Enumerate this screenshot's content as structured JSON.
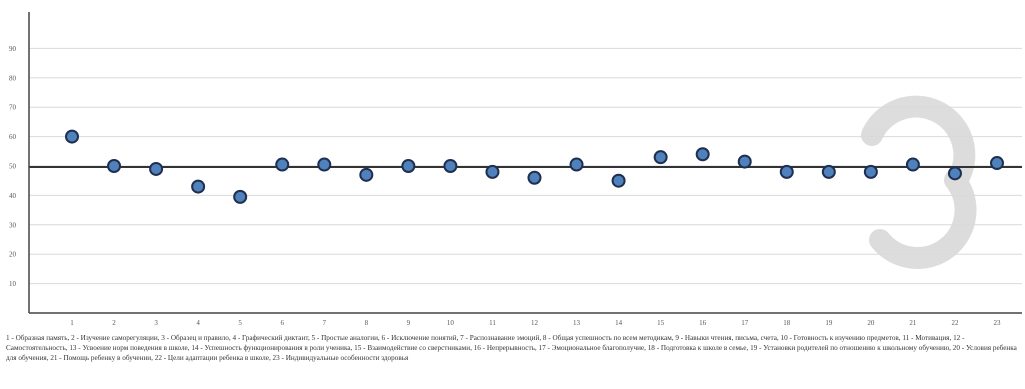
{
  "chart_data": {
    "type": "scatter",
    "x": [
      1,
      2,
      3,
      4,
      5,
      6,
      7,
      8,
      9,
      10,
      11,
      12,
      13,
      14,
      15,
      16,
      17,
      18,
      19,
      20,
      21,
      22,
      23
    ],
    "values": [
      60,
      50,
      49,
      43,
      39.5,
      50.5,
      50.5,
      47,
      50,
      50,
      48,
      46,
      50.5,
      45,
      53,
      54,
      51.5,
      48,
      48,
      48,
      50.5,
      47.5,
      51
    ],
    "yticks": [
      "10",
      "20",
      "30",
      "40",
      "50",
      "60",
      "70",
      "80",
      "90"
    ],
    "xticks": [
      "1",
      "2",
      "3",
      "4",
      "5",
      "6",
      "7",
      "8",
      "9",
      "10",
      "11",
      "12",
      "13",
      "14",
      "15",
      "16",
      "17",
      "18",
      "19",
      "20",
      "21",
      "22",
      "23"
    ],
    "ylim": [
      0,
      100
    ],
    "reference_line": 50,
    "grid": true,
    "point_color": "#4f81bd",
    "point_edge_color": "#1f2f4f"
  },
  "caption": "1 - Образная память, 2 - Изучение саморегуляции, 3 - Образец и правило, 4 - Графический диктант, 5 - Простые аналогии, 6 - Исключение понятий, 7 - Распознавание эмоций, 8 - Общая успешность по всем методикам, 9 - Навыки чтения, письма, счета, 10 - Готовность к изучению предметов, 11 - Мотивация, 12 - Самостоятельность, 13 - Усвоение норм поведения в школе, 14 - Успешность функционирования в роли ученика, 15 - Взаимодействие со сверстниками, 16 - Непрерывность, 17 - Эмоциональное благополучие, 18 - Подготовка к школе в семье, 19 - Установки родителей по отношению к школьному обучению, 20 - Условия ребенка для обучения, 21 - Помощь ребенку в обучении, 22 - Цели адаптации ребенка в школе, 23 - Индивидуальные особенности здоровья"
}
